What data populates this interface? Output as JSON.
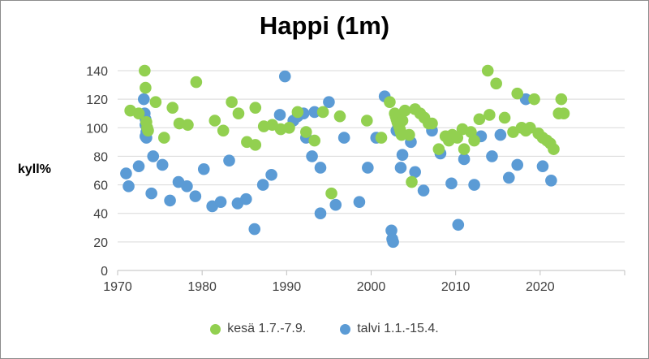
{
  "chart_data": {
    "type": "scatter",
    "title": "Happi (1m)",
    "ylabel": "kyll%",
    "xlabel": "",
    "xlim": [
      1970,
      2030
    ],
    "ylim": [
      0,
      140
    ],
    "xticks": [
      1970,
      1980,
      1990,
      2000,
      2010,
      2020
    ],
    "yticks": [
      0,
      20,
      40,
      60,
      80,
      100,
      120,
      140
    ],
    "grid": "horizontal",
    "legend_position": "bottom",
    "series": [
      {
        "name": "kesä 1.7.-7.9.",
        "color": "#92d050",
        "points": [
          [
            1971.5,
            112
          ],
          [
            1972.5,
            110
          ],
          [
            1973.2,
            140
          ],
          [
            1973.3,
            128
          ],
          [
            1973.4,
            104
          ],
          [
            1973.5,
            100
          ],
          [
            1973.6,
            98
          ],
          [
            1974.5,
            118
          ],
          [
            1975.5,
            93
          ],
          [
            1976.5,
            114
          ],
          [
            1977.3,
            103
          ],
          [
            1978.3,
            102
          ],
          [
            1979.3,
            132
          ],
          [
            1981.5,
            105
          ],
          [
            1982.5,
            98
          ],
          [
            1983.5,
            118
          ],
          [
            1984.3,
            110
          ],
          [
            1985.3,
            90
          ],
          [
            1986.3,
            88
          ],
          [
            1986.3,
            114
          ],
          [
            1987.3,
            101
          ],
          [
            1988.3,
            102
          ],
          [
            1989.3,
            99
          ],
          [
            1990.3,
            100
          ],
          [
            1991.3,
            111
          ],
          [
            1992.3,
            97
          ],
          [
            1993.3,
            91
          ],
          [
            1994.3,
            111
          ],
          [
            1995.3,
            54
          ],
          [
            1996.3,
            108
          ],
          [
            1999.5,
            105
          ],
          [
            2001.2,
            93
          ],
          [
            2002.2,
            118
          ],
          [
            2002.8,
            110
          ],
          [
            2002.9,
            108
          ],
          [
            2003.0,
            106
          ],
          [
            2003.1,
            104
          ],
          [
            2003.2,
            103
          ],
          [
            2003.3,
            101
          ],
          [
            2003.4,
            99
          ],
          [
            2003.5,
            97
          ],
          [
            2003.6,
            95
          ],
          [
            2003.7,
            105
          ],
          [
            2004.0,
            112
          ],
          [
            2004.5,
            95
          ],
          [
            2004.8,
            62
          ],
          [
            2005.2,
            113
          ],
          [
            2005.8,
            110
          ],
          [
            2006.3,
            107
          ],
          [
            2006.8,
            103
          ],
          [
            2007.2,
            103
          ],
          [
            2008.0,
            85
          ],
          [
            2008.8,
            94
          ],
          [
            2009.2,
            91
          ],
          [
            2009.6,
            95
          ],
          [
            2010.2,
            93
          ],
          [
            2010.8,
            99
          ],
          [
            2011.0,
            85
          ],
          [
            2011.8,
            97
          ],
          [
            2012.2,
            91
          ],
          [
            2012.8,
            106
          ],
          [
            2013.8,
            140
          ],
          [
            2014.0,
            109
          ],
          [
            2014.8,
            131
          ],
          [
            2015.8,
            107
          ],
          [
            2016.8,
            97
          ],
          [
            2017.3,
            124
          ],
          [
            2017.8,
            100
          ],
          [
            2018.3,
            98
          ],
          [
            2018.8,
            100
          ],
          [
            2019.3,
            120
          ],
          [
            2019.8,
            96
          ],
          [
            2020.3,
            93
          ],
          [
            2020.8,
            91
          ],
          [
            2021.2,
            89
          ],
          [
            2021.6,
            85
          ],
          [
            2022.2,
            110
          ],
          [
            2022.5,
            120
          ],
          [
            2022.8,
            110
          ]
        ]
      },
      {
        "name": "talvi 1.1.-15.4.",
        "color": "#5b9bd5",
        "points": [
          [
            1971.0,
            68
          ],
          [
            1971.3,
            59
          ],
          [
            1972.5,
            73
          ],
          [
            1973.1,
            120
          ],
          [
            1973.2,
            110
          ],
          [
            1973.3,
            106
          ],
          [
            1973.3,
            102
          ],
          [
            1973.4,
            97
          ],
          [
            1973.3,
            94
          ],
          [
            1973.4,
            93
          ],
          [
            1974.0,
            54
          ],
          [
            1974.2,
            80
          ],
          [
            1975.3,
            74
          ],
          [
            1976.2,
            49
          ],
          [
            1977.2,
            62
          ],
          [
            1978.2,
            59
          ],
          [
            1979.2,
            52
          ],
          [
            1980.2,
            71
          ],
          [
            1981.2,
            45
          ],
          [
            1982.2,
            48
          ],
          [
            1983.2,
            77
          ],
          [
            1984.2,
            47
          ],
          [
            1985.2,
            50
          ],
          [
            1986.2,
            29
          ],
          [
            1987.2,
            60
          ],
          [
            1988.2,
            67
          ],
          [
            1989.2,
            109
          ],
          [
            1989.8,
            136
          ],
          [
            1990.8,
            105
          ],
          [
            1991.3,
            108
          ],
          [
            1992.0,
            110
          ],
          [
            1992.3,
            93
          ],
          [
            1993.0,
            80
          ],
          [
            1993.3,
            111
          ],
          [
            1994.0,
            72
          ],
          [
            1994.0,
            40
          ],
          [
            1995.0,
            118
          ],
          [
            1995.8,
            46
          ],
          [
            1996.8,
            93
          ],
          [
            1998.6,
            48
          ],
          [
            1999.6,
            72
          ],
          [
            2000.6,
            93
          ],
          [
            2001.6,
            122
          ],
          [
            2002.4,
            28
          ],
          [
            2002.5,
            22
          ],
          [
            2002.6,
            20
          ],
          [
            2003.0,
            98
          ],
          [
            2003.2,
            102
          ],
          [
            2003.3,
            104
          ],
          [
            2003.5,
            72
          ],
          [
            2003.7,
            81
          ],
          [
            2004.7,
            90
          ],
          [
            2005.2,
            69
          ],
          [
            2006.2,
            56
          ],
          [
            2007.2,
            98
          ],
          [
            2008.2,
            82
          ],
          [
            2009.5,
            61
          ],
          [
            2010.3,
            32
          ],
          [
            2011.0,
            78
          ],
          [
            2012.2,
            60
          ],
          [
            2013.0,
            94
          ],
          [
            2014.3,
            80
          ],
          [
            2015.3,
            95
          ],
          [
            2016.3,
            65
          ],
          [
            2017.3,
            74
          ],
          [
            2018.3,
            120
          ],
          [
            2020.3,
            73
          ],
          [
            2021.3,
            63
          ]
        ]
      }
    ]
  }
}
